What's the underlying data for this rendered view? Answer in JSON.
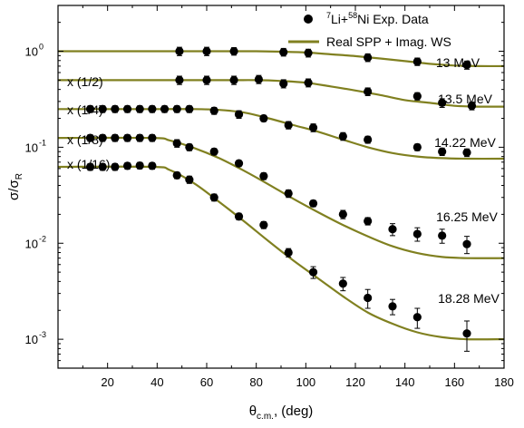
{
  "chart_data": {
    "type": "scatter",
    "xlabel": "θ",
    "xlabel_sub": "c.m.",
    "xlabel_unit": ", (deg)",
    "ylabel": "σ/σ",
    "ylabel_sub": "R",
    "xlim": [
      0,
      180
    ],
    "ylim": [
      0.0005,
      3
    ],
    "yscale": "log",
    "xticks": [
      20,
      40,
      60,
      80,
      100,
      120,
      140,
      160,
      180
    ],
    "yticks": [
      {
        "value": 0.001,
        "base": "10",
        "exp": "-3"
      },
      {
        "value": 0.01,
        "base": "10",
        "exp": "-2"
      },
      {
        "value": 0.1,
        "base": "10",
        "exp": "-1"
      },
      {
        "value": 1,
        "base": "10",
        "exp": "0"
      }
    ],
    "legend": {
      "position": "top-right",
      "entries": [
        {
          "type": "marker",
          "pre": "",
          "sup1": "7",
          "mid": "Li+",
          "sup2": "58",
          "post": "Ni Exp. Data"
        },
        {
          "type": "line",
          "label": "Real SPP + Imag. WS"
        }
      ]
    },
    "colors": {
      "data": "#000000",
      "fit": "#808020"
    },
    "series": [
      {
        "energy": "13 MeV",
        "scale": "",
        "data": [
          {
            "x": 49,
            "y": 1.0,
            "err": 0.1
          },
          {
            "x": 60,
            "y": 1.0,
            "err": 0.1
          },
          {
            "x": 71,
            "y": 1.0,
            "err": 0.09
          },
          {
            "x": 91,
            "y": 0.98,
            "err": 0.09
          },
          {
            "x": 101,
            "y": 0.96,
            "err": 0.09
          },
          {
            "x": 125,
            "y": 0.86,
            "err": 0.08
          },
          {
            "x": 145,
            "y": 0.78,
            "err": 0.07
          },
          {
            "x": 165,
            "y": 0.72,
            "err": 0.07
          }
        ],
        "fit": [
          [
            0,
            1.0
          ],
          [
            40,
            1.0
          ],
          [
            60,
            1.0
          ],
          [
            80,
            1.0
          ],
          [
            90,
            0.99
          ],
          [
            100,
            0.97
          ],
          [
            110,
            0.93
          ],
          [
            120,
            0.89
          ],
          [
            130,
            0.84
          ],
          [
            140,
            0.79
          ],
          [
            150,
            0.74
          ],
          [
            160,
            0.71
          ],
          [
            170,
            0.7
          ],
          [
            180,
            0.7
          ]
        ]
      },
      {
        "energy": "13.5 MeV",
        "scale": "x (1/2)",
        "data": [
          {
            "x": 49,
            "y": 0.5,
            "err": 0.05
          },
          {
            "x": 60,
            "y": 0.5,
            "err": 0.05
          },
          {
            "x": 71,
            "y": 0.5,
            "err": 0.05
          },
          {
            "x": 81,
            "y": 0.51,
            "err": 0.05
          },
          {
            "x": 91,
            "y": 0.46,
            "err": 0.045
          },
          {
            "x": 101,
            "y": 0.47,
            "err": 0.045
          },
          {
            "x": 125,
            "y": 0.38,
            "err": 0.035
          },
          {
            "x": 145,
            "y": 0.34,
            "err": 0.03
          },
          {
            "x": 155,
            "y": 0.29,
            "err": 0.03
          },
          {
            "x": 167,
            "y": 0.27,
            "err": 0.025
          }
        ],
        "fit": [
          [
            0,
            0.5
          ],
          [
            50,
            0.5
          ],
          [
            70,
            0.5
          ],
          [
            80,
            0.5
          ],
          [
            90,
            0.49
          ],
          [
            100,
            0.47
          ],
          [
            110,
            0.43
          ],
          [
            120,
            0.39
          ],
          [
            130,
            0.35
          ],
          [
            140,
            0.31
          ],
          [
            150,
            0.29
          ],
          [
            160,
            0.27
          ],
          [
            170,
            0.265
          ],
          [
            180,
            0.265
          ]
        ]
      },
      {
        "energy": "14.22 MeV",
        "scale": "x (1/4)",
        "data": [
          {
            "x": 13,
            "y": 0.25,
            "err": 0.02
          },
          {
            "x": 18,
            "y": 0.25,
            "err": 0.02
          },
          {
            "x": 23,
            "y": 0.25,
            "err": 0.02
          },
          {
            "x": 28,
            "y": 0.25,
            "err": 0.02
          },
          {
            "x": 33,
            "y": 0.25,
            "err": 0.02
          },
          {
            "x": 38,
            "y": 0.25,
            "err": 0.02
          },
          {
            "x": 43,
            "y": 0.25,
            "err": 0.02
          },
          {
            "x": 48,
            "y": 0.25,
            "err": 0.02
          },
          {
            "x": 53,
            "y": 0.25,
            "err": 0.02
          },
          {
            "x": 63,
            "y": 0.24,
            "err": 0.02
          },
          {
            "x": 73,
            "y": 0.22,
            "err": 0.02
          },
          {
            "x": 83,
            "y": 0.2,
            "err": 0.015
          },
          {
            "x": 93,
            "y": 0.17,
            "err": 0.015
          },
          {
            "x": 103,
            "y": 0.16,
            "err": 0.015
          },
          {
            "x": 115,
            "y": 0.13,
            "err": 0.012
          },
          {
            "x": 125,
            "y": 0.12,
            "err": 0.01
          },
          {
            "x": 145,
            "y": 0.1,
            "err": 0.008
          },
          {
            "x": 155,
            "y": 0.09,
            "err": 0.008
          },
          {
            "x": 165,
            "y": 0.088,
            "err": 0.008
          }
        ],
        "fit": [
          [
            0,
            0.25
          ],
          [
            40,
            0.25
          ],
          [
            55,
            0.25
          ],
          [
            65,
            0.245
          ],
          [
            75,
            0.23
          ],
          [
            85,
            0.2
          ],
          [
            95,
            0.17
          ],
          [
            105,
            0.145
          ],
          [
            115,
            0.12
          ],
          [
            125,
            0.1
          ],
          [
            135,
            0.087
          ],
          [
            145,
            0.08
          ],
          [
            155,
            0.077
          ],
          [
            165,
            0.076
          ],
          [
            180,
            0.076
          ]
        ]
      },
      {
        "energy": "16.25 MeV",
        "scale": "x (1/8)",
        "data": [
          {
            "x": 13,
            "y": 0.125,
            "err": 0.01
          },
          {
            "x": 18,
            "y": 0.125,
            "err": 0.01
          },
          {
            "x": 23,
            "y": 0.125,
            "err": 0.01
          },
          {
            "x": 28,
            "y": 0.125,
            "err": 0.01
          },
          {
            "x": 33,
            "y": 0.125,
            "err": 0.01
          },
          {
            "x": 38,
            "y": 0.125,
            "err": 0.01
          },
          {
            "x": 48,
            "y": 0.11,
            "err": 0.01
          },
          {
            "x": 53,
            "y": 0.1,
            "err": 0.008
          },
          {
            "x": 63,
            "y": 0.09,
            "err": 0.007
          },
          {
            "x": 73,
            "y": 0.068,
            "err": 0.005
          },
          {
            "x": 83,
            "y": 0.05,
            "err": 0.004
          },
          {
            "x": 93,
            "y": 0.033,
            "err": 0.003
          },
          {
            "x": 103,
            "y": 0.026,
            "err": 0.002
          },
          {
            "x": 115,
            "y": 0.02,
            "err": 0.002
          },
          {
            "x": 125,
            "y": 0.017,
            "err": 0.0015
          },
          {
            "x": 135,
            "y": 0.014,
            "err": 0.002
          },
          {
            "x": 145,
            "y": 0.0125,
            "err": 0.002
          },
          {
            "x": 155,
            "y": 0.012,
            "err": 0.002
          },
          {
            "x": 165,
            "y": 0.0098,
            "err": 0.002
          }
        ],
        "fit": [
          [
            0,
            0.125
          ],
          [
            38,
            0.125
          ],
          [
            45,
            0.118
          ],
          [
            55,
            0.098
          ],
          [
            65,
            0.077
          ],
          [
            75,
            0.057
          ],
          [
            85,
            0.041
          ],
          [
            95,
            0.029
          ],
          [
            105,
            0.021
          ],
          [
            115,
            0.0155
          ],
          [
            125,
            0.0118
          ],
          [
            135,
            0.0093
          ],
          [
            145,
            0.0079
          ],
          [
            155,
            0.0072
          ],
          [
            165,
            0.007
          ],
          [
            180,
            0.007
          ]
        ]
      },
      {
        "energy": "18.28 MeV",
        "scale": "x (1/16)",
        "data": [
          {
            "x": 13,
            "y": 0.0625,
            "err": 0.005
          },
          {
            "x": 18,
            "y": 0.0625,
            "err": 0.005
          },
          {
            "x": 23,
            "y": 0.0625,
            "err": 0.005
          },
          {
            "x": 28,
            "y": 0.064,
            "err": 0.005
          },
          {
            "x": 33,
            "y": 0.0645,
            "err": 0.005
          },
          {
            "x": 38,
            "y": 0.064,
            "err": 0.005
          },
          {
            "x": 48,
            "y": 0.051,
            "err": 0.004
          },
          {
            "x": 53,
            "y": 0.046,
            "err": 0.004
          },
          {
            "x": 63,
            "y": 0.03,
            "err": 0.0025
          },
          {
            "x": 73,
            "y": 0.019,
            "err": 0.0015
          },
          {
            "x": 83,
            "y": 0.0155,
            "err": 0.0013
          },
          {
            "x": 93,
            "y": 0.008,
            "err": 0.0008
          },
          {
            "x": 103,
            "y": 0.005,
            "err": 0.0007
          },
          {
            "x": 115,
            "y": 0.0038,
            "err": 0.0006
          },
          {
            "x": 125,
            "y": 0.0027,
            "err": 0.0006
          },
          {
            "x": 135,
            "y": 0.0022,
            "err": 0.0004
          },
          {
            "x": 145,
            "y": 0.0017,
            "err": 0.0004
          },
          {
            "x": 165,
            "y": 0.00115,
            "err": 0.0004
          }
        ],
        "fit": [
          [
            0,
            0.0625
          ],
          [
            38,
            0.0625
          ],
          [
            45,
            0.058
          ],
          [
            55,
            0.042
          ],
          [
            65,
            0.027
          ],
          [
            75,
            0.017
          ],
          [
            85,
            0.0105
          ],
          [
            95,
            0.0066
          ],
          [
            105,
            0.0043
          ],
          [
            115,
            0.0028
          ],
          [
            125,
            0.0019
          ],
          [
            135,
            0.00145
          ],
          [
            145,
            0.00118
          ],
          [
            155,
            0.00105
          ],
          [
            165,
            0.001
          ],
          [
            180,
            0.001
          ]
        ]
      }
    ]
  }
}
